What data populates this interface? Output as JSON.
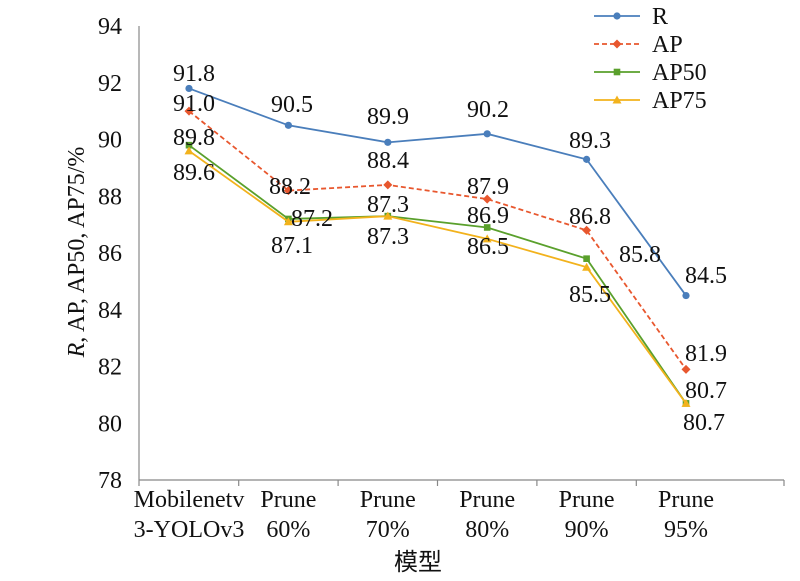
{
  "chart_data": {
    "type": "line",
    "categories": [
      [
        "Mobilenetv",
        "3-YOLOv3"
      ],
      [
        "Prune",
        "60%"
      ],
      [
        "Prune",
        "70%"
      ],
      [
        "Prune",
        "80%"
      ],
      [
        "Prune",
        "90%"
      ],
      [
        "Prune",
        "95%"
      ]
    ],
    "series": [
      {
        "name": "R",
        "values": [
          91.8,
          90.5,
          89.9,
          90.2,
          89.3,
          84.5
        ],
        "color": "#4a7ebb",
        "dash": false,
        "marker": "circle"
      },
      {
        "name": "AP",
        "values": [
          91.0,
          88.2,
          88.4,
          87.9,
          86.8,
          81.9
        ],
        "color": "#e8572e",
        "dash": true,
        "marker": "diamond"
      },
      {
        "name": "AP50",
        "values": [
          89.8,
          87.2,
          87.3,
          86.9,
          85.8,
          80.7
        ],
        "color": "#5aa02c",
        "dash": false,
        "marker": "square"
      },
      {
        "name": "AP75",
        "values": [
          89.6,
          87.1,
          87.3,
          86.5,
          85.5,
          80.7
        ],
        "color": "#f2b21c",
        "dash": false,
        "marker": "triangle"
      }
    ],
    "data_labels": [
      [
        "91.8",
        "90.5",
        "89.9",
        "90.2",
        "89.3",
        "84.5"
      ],
      [
        "91.0",
        "88.2",
        "88.4",
        "87.9",
        "86.8",
        "81.9"
      ],
      [
        "89.8",
        "87.2",
        "87.3",
        "86.9",
        "85.8",
        "80.7"
      ],
      [
        "89.6",
        "87.1",
        "87.3",
        "86.5",
        "85.5",
        "80.7"
      ]
    ],
    "xlabel": "模型",
    "ylabel_parts": [
      {
        "text": "R",
        "italic": true
      },
      {
        "text": ", AP, AP50, AP75/%",
        "italic": false
      }
    ],
    "ylim": [
      78,
      94
    ],
    "yticks": [
      78,
      80,
      82,
      84,
      86,
      88,
      90,
      92,
      94
    ],
    "grid": false,
    "legend_position": "top-right"
  }
}
